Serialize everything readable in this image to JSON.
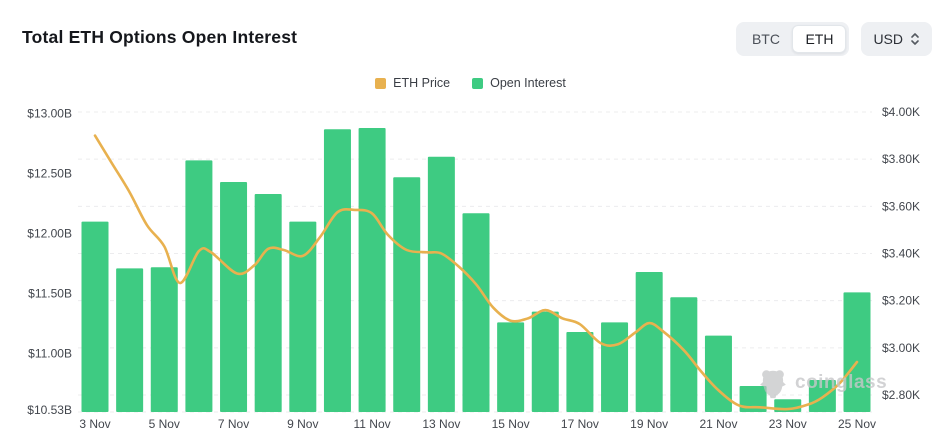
{
  "header": {
    "title": "Total ETH Options Open Interest",
    "controls": {
      "btc_label": "BTC",
      "eth_label": "ETH",
      "selected_asset": "ETH",
      "currency_label": "USD",
      "currency_icon": "updown-chevrons-icon"
    }
  },
  "legend": {
    "items": [
      {
        "label": "ETH Price",
        "color": "#e8b14f"
      },
      {
        "label": "Open Interest",
        "color": "#3ecb82"
      }
    ]
  },
  "watermark": {
    "text": "coinglass",
    "icon": "bear-logo-icon"
  },
  "colors": {
    "bar": "#3ecb82",
    "line": "#e8b14f",
    "grid": "#ececee",
    "axis_text": "#42464d"
  },
  "chart_data": {
    "type": "bar+line",
    "title": "Total ETH Options Open Interest",
    "categories": [
      "3 Nov",
      "4 Nov",
      "5 Nov",
      "6 Nov",
      "7 Nov",
      "8 Nov",
      "9 Nov",
      "10 Nov",
      "11 Nov",
      "12 Nov",
      "13 Nov",
      "14 Nov",
      "15 Nov",
      "16 Nov",
      "17 Nov",
      "18 Nov",
      "19 Nov",
      "20 Nov",
      "21 Nov",
      "22 Nov",
      "23 Nov",
      "24 Nov",
      "25 Nov"
    ],
    "series": [
      {
        "name": "Open Interest",
        "type": "bar",
        "axis": "left",
        "unit": "$B",
        "values": [
          12.1,
          11.71,
          11.72,
          12.61,
          12.43,
          12.33,
          12.1,
          12.87,
          12.88,
          12.47,
          12.64,
          12.17,
          11.26,
          11.35,
          11.18,
          11.26,
          11.68,
          11.47,
          11.15,
          10.73,
          10.62,
          10.78,
          11.51
        ]
      },
      {
        "name": "ETH Price",
        "type": "line",
        "axis": "right",
        "unit": "$K",
        "values": [
          3.9,
          3.66,
          3.43,
          3.41,
          3.32,
          3.42,
          3.39,
          3.58,
          3.57,
          3.41,
          3.4,
          3.27,
          3.11,
          3.16,
          3.1,
          3.02,
          3.1,
          2.99,
          2.82,
          2.75,
          2.74,
          2.79,
          2.94
        ]
      }
    ],
    "left_axis": {
      "min": 10.53,
      "max": 13.0,
      "unit": "B",
      "ticks": [
        {
          "value": 13.0,
          "label": "$13.00B"
        },
        {
          "value": 12.5,
          "label": "$12.50B"
        },
        {
          "value": 12.0,
          "label": "$12.00B"
        },
        {
          "value": 11.5,
          "label": "$11.50B"
        },
        {
          "value": 11.0,
          "label": "$11.00B"
        },
        {
          "value": 10.53,
          "label": "$10.53B"
        }
      ]
    },
    "right_axis": {
      "min": 2.8,
      "max": 4.0,
      "unit": "K",
      "ticks": [
        {
          "value": 4.0,
          "label": "$4.00K"
        },
        {
          "value": 3.8,
          "label": "$3.80K"
        },
        {
          "value": 3.6,
          "label": "$3.60K"
        },
        {
          "value": 3.4,
          "label": "$3.40K"
        },
        {
          "value": 3.2,
          "label": "$3.20K"
        },
        {
          "value": 3.0,
          "label": "$3.00K"
        },
        {
          "value": 2.8,
          "label": "$2.80K"
        }
      ]
    },
    "x_ticks": [
      {
        "day": 3,
        "label": "3 Nov"
      },
      {
        "day": 5,
        "label": "5 Nov"
      },
      {
        "day": 7,
        "label": "7 Nov"
      },
      {
        "day": 9,
        "label": "9 Nov"
      },
      {
        "day": 11,
        "label": "11 Nov"
      },
      {
        "day": 13,
        "label": "13 Nov"
      },
      {
        "day": 15,
        "label": "15 Nov"
      },
      {
        "day": 17,
        "label": "17 Nov"
      },
      {
        "day": 19,
        "label": "19 Nov"
      },
      {
        "day": 21,
        "label": "21 Nov"
      },
      {
        "day": 23,
        "label": "23 Nov"
      },
      {
        "day": 25,
        "label": "25 Nov"
      }
    ],
    "grid": "dashed-horizontal",
    "legend_position": "top-center",
    "price_curve_samples": [
      [
        3.0,
        3.9
      ],
      [
        3.5,
        3.78
      ],
      [
        4.0,
        3.66
      ],
      [
        4.5,
        3.52
      ],
      [
        5.0,
        3.43
      ],
      [
        5.45,
        3.275
      ],
      [
        6.0,
        3.41
      ],
      [
        6.35,
        3.405
      ],
      [
        7.1,
        3.315
      ],
      [
        7.6,
        3.35
      ],
      [
        8.0,
        3.42
      ],
      [
        8.45,
        3.415
      ],
      [
        9.0,
        3.39
      ],
      [
        9.5,
        3.47
      ],
      [
        10.0,
        3.575
      ],
      [
        10.5,
        3.585
      ],
      [
        11.0,
        3.57
      ],
      [
        11.45,
        3.48
      ],
      [
        12.0,
        3.415
      ],
      [
        12.6,
        3.405
      ],
      [
        13.0,
        3.4
      ],
      [
        13.5,
        3.345
      ],
      [
        14.0,
        3.27
      ],
      [
        14.5,
        3.17
      ],
      [
        15.0,
        3.115
      ],
      [
        15.5,
        3.125
      ],
      [
        16.0,
        3.16
      ],
      [
        16.5,
        3.125
      ],
      [
        17.0,
        3.1
      ],
      [
        17.6,
        3.02
      ],
      [
        18.1,
        3.015
      ],
      [
        18.6,
        3.065
      ],
      [
        19.0,
        3.105
      ],
      [
        19.4,
        3.07
      ],
      [
        20.0,
        2.99
      ],
      [
        20.5,
        2.9
      ],
      [
        21.0,
        2.82
      ],
      [
        21.6,
        2.755
      ],
      [
        22.2,
        2.748
      ],
      [
        23.0,
        2.74
      ],
      [
        23.6,
        2.76
      ],
      [
        24.0,
        2.79
      ],
      [
        24.5,
        2.85
      ],
      [
        25.0,
        2.94
      ]
    ]
  }
}
